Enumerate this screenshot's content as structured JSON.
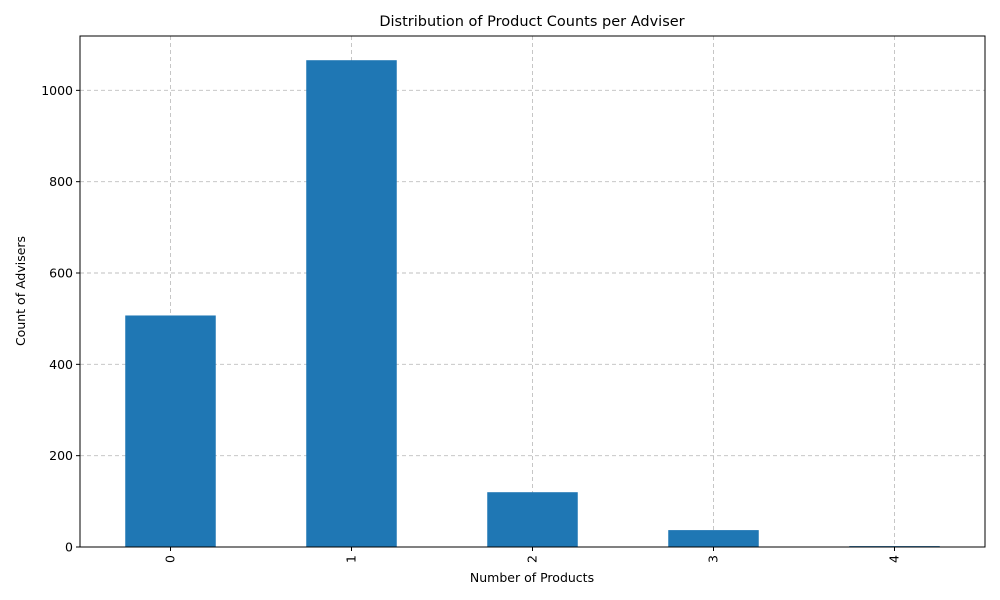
{
  "chart_data": {
    "type": "bar",
    "title": "Distribution of Product Counts per Adviser",
    "xlabel": "Number of Products",
    "ylabel": "Count of Advisers",
    "categories": [
      "0",
      "1",
      "2",
      "3",
      "4"
    ],
    "values": [
      507,
      1066,
      120,
      37,
      2
    ],
    "ylim": [
      0,
      1119
    ],
    "yticks": [
      0,
      200,
      400,
      600,
      800,
      1000
    ],
    "grid": true,
    "bar_color": "#1f77b4",
    "x_tick_rotation": 90
  }
}
